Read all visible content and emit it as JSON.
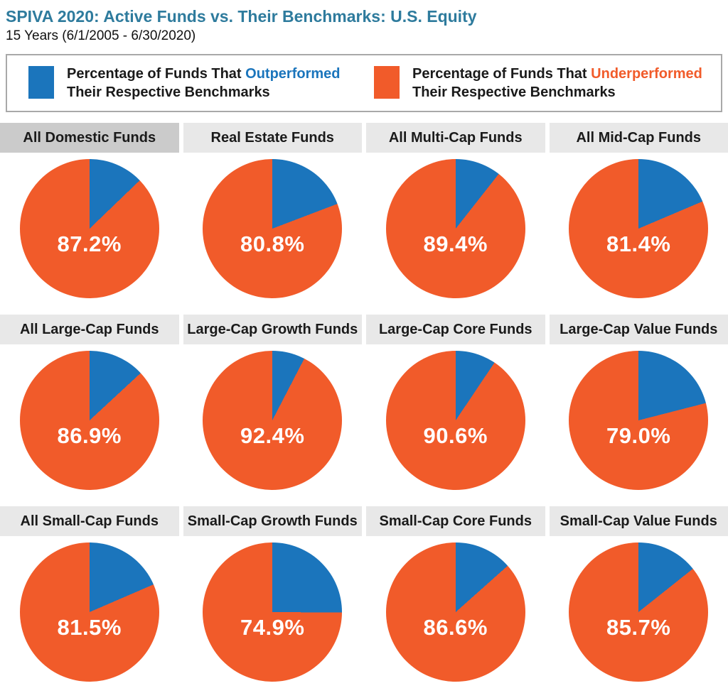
{
  "header": {
    "title": "SPIVA 2020: Active Funds vs. Their Benchmarks: U.S. Equity",
    "subtitle": "15 Years (6/1/2005 - 6/30/2020)"
  },
  "colors": {
    "title_teal": "#2e7b9d",
    "outperformed_blue": "#1b75bc",
    "underperformed_orange": "#f15b2a",
    "header_highlight_gray": "#cbcbcb",
    "header_gray": "#e8e8e8"
  },
  "legend": {
    "outperformed": {
      "prefix": "Percentage of Funds That ",
      "keyword": "Outperformed",
      "line2": "Their Respective Benchmarks"
    },
    "underperformed": {
      "prefix": "Percentage of Funds That ",
      "keyword": "Underperformed",
      "line2": "Their Respective Benchmarks"
    }
  },
  "chart_data": [
    {
      "type": "pie",
      "title": "All Domestic Funds",
      "data_label": "87.2%",
      "highlighted": true,
      "slices": [
        {
          "label": "Underperformed",
          "value": 87.2,
          "color": "#f15b2a"
        },
        {
          "label": "Outperformed",
          "value": 12.8,
          "color": "#1b75bc"
        }
      ]
    },
    {
      "type": "pie",
      "title": "Real Estate Funds",
      "data_label": "80.8%",
      "highlighted": false,
      "slices": [
        {
          "label": "Underperformed",
          "value": 80.8,
          "color": "#f15b2a"
        },
        {
          "label": "Outperformed",
          "value": 19.2,
          "color": "#1b75bc"
        }
      ]
    },
    {
      "type": "pie",
      "title": "All Multi-Cap Funds",
      "data_label": "89.4%",
      "highlighted": false,
      "slices": [
        {
          "label": "Underperformed",
          "value": 89.4,
          "color": "#f15b2a"
        },
        {
          "label": "Outperformed",
          "value": 10.6,
          "color": "#1b75bc"
        }
      ]
    },
    {
      "type": "pie",
      "title": "All Mid-Cap Funds",
      "data_label": "81.4%",
      "highlighted": false,
      "slices": [
        {
          "label": "Underperformed",
          "value": 81.4,
          "color": "#f15b2a"
        },
        {
          "label": "Outperformed",
          "value": 18.6,
          "color": "#1b75bc"
        }
      ]
    },
    {
      "type": "pie",
      "title": "All Large-Cap Funds",
      "data_label": "86.9%",
      "highlighted": false,
      "slices": [
        {
          "label": "Underperformed",
          "value": 86.9,
          "color": "#f15b2a"
        },
        {
          "label": "Outperformed",
          "value": 13.1,
          "color": "#1b75bc"
        }
      ]
    },
    {
      "type": "pie",
      "title": "Large-Cap Growth Funds",
      "data_label": "92.4%",
      "highlighted": false,
      "slices": [
        {
          "label": "Underperformed",
          "value": 92.4,
          "color": "#f15b2a"
        },
        {
          "label": "Outperformed",
          "value": 7.6,
          "color": "#1b75bc"
        }
      ]
    },
    {
      "type": "pie",
      "title": "Large-Cap Core Funds",
      "data_label": "90.6%",
      "highlighted": false,
      "slices": [
        {
          "label": "Underperformed",
          "value": 90.6,
          "color": "#f15b2a"
        },
        {
          "label": "Outperformed",
          "value": 9.4,
          "color": "#1b75bc"
        }
      ]
    },
    {
      "type": "pie",
      "title": "Large-Cap Value Funds",
      "data_label": "79.0%",
      "highlighted": false,
      "slices": [
        {
          "label": "Underperformed",
          "value": 79.0,
          "color": "#f15b2a"
        },
        {
          "label": "Outperformed",
          "value": 21.0,
          "color": "#1b75bc"
        }
      ]
    },
    {
      "type": "pie",
      "title": "All Small-Cap Funds",
      "data_label": "81.5%",
      "highlighted": false,
      "slices": [
        {
          "label": "Underperformed",
          "value": 81.5,
          "color": "#f15b2a"
        },
        {
          "label": "Outperformed",
          "value": 18.5,
          "color": "#1b75bc"
        }
      ]
    },
    {
      "type": "pie",
      "title": "Small-Cap Growth Funds",
      "data_label": "74.9%",
      "highlighted": false,
      "slices": [
        {
          "label": "Underperformed",
          "value": 74.9,
          "color": "#f15b2a"
        },
        {
          "label": "Outperformed",
          "value": 25.1,
          "color": "#1b75bc"
        }
      ]
    },
    {
      "type": "pie",
      "title": "Small-Cap Core Funds",
      "data_label": "86.6%",
      "highlighted": false,
      "slices": [
        {
          "label": "Underperformed",
          "value": 86.6,
          "color": "#f15b2a"
        },
        {
          "label": "Outperformed",
          "value": 13.4,
          "color": "#1b75bc"
        }
      ]
    },
    {
      "type": "pie",
      "title": "Small-Cap Value Funds",
      "data_label": "85.7%",
      "highlighted": false,
      "slices": [
        {
          "label": "Underperformed",
          "value": 85.7,
          "color": "#f15b2a"
        },
        {
          "label": "Outperformed",
          "value": 14.3,
          "color": "#1b75bc"
        }
      ]
    }
  ]
}
